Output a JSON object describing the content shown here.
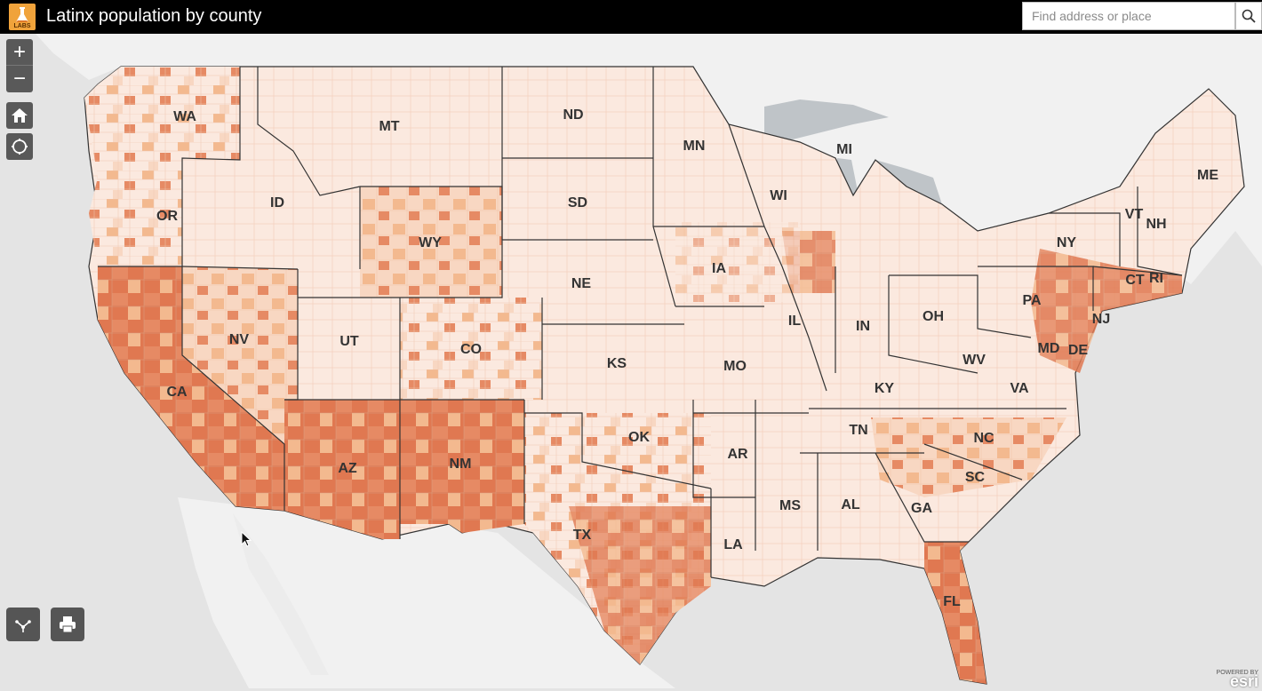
{
  "header": {
    "title": "Latinx population by county",
    "logo_text": "LABS",
    "search_placeholder": "Find address or place",
    "search_icon": "search-icon"
  },
  "controls": {
    "zoom_in": "+",
    "zoom_out": "−",
    "home_icon": "home-icon",
    "locate_icon": "locate-icon",
    "share_icon": "share-icon",
    "print_icon": "print-icon"
  },
  "attribution": {
    "powered_by": "POWERED BY",
    "brand": "esri"
  },
  "colors": {
    "ocean": "#e4e4e4",
    "land_outside": "#f1f1f1",
    "lakes": "#bfc4c8",
    "county_light": "#fbe9df",
    "county_lighter": "#f8d7c2",
    "county_mid": "#f3b98f",
    "county_dark": "#e68a64",
    "county_darkest": "#e07851",
    "state_border": "#333333"
  },
  "states": [
    "WA",
    "OR",
    "CA",
    "ID",
    "NV",
    "MT",
    "WY",
    "UT",
    "AZ",
    "CO",
    "NM",
    "ND",
    "SD",
    "NE",
    "KS",
    "OK",
    "TX",
    "MN",
    "IA",
    "MO",
    "AR",
    "LA",
    "WI",
    "IL",
    "MI",
    "IN",
    "OH",
    "KY",
    "TN",
    "MS",
    "AL",
    "GA",
    "FL",
    "SC",
    "NC",
    "VA",
    "WV",
    "PA",
    "NY",
    "VT",
    "NH",
    "ME",
    "MD",
    "DE",
    "NJ",
    "CT",
    "RI"
  ]
}
